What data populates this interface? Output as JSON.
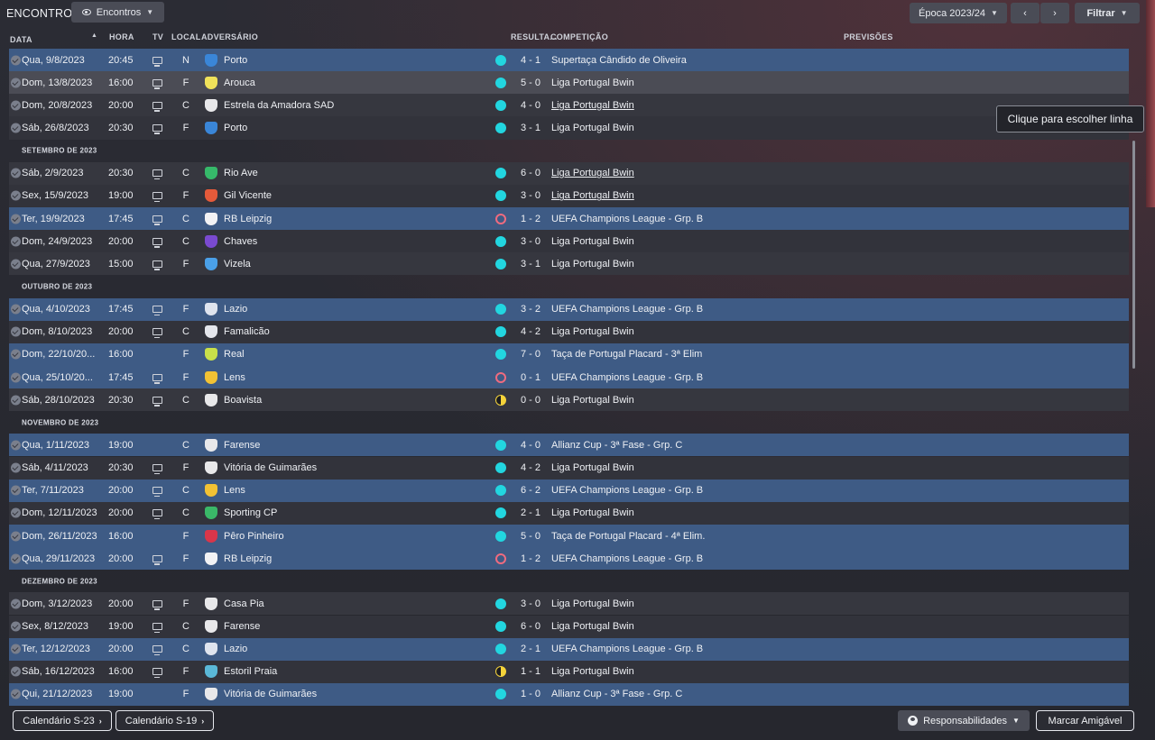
{
  "title": "ENCONTROS",
  "view_label": "Encontros",
  "season_label": "Época 2023/24",
  "filter_label": "Filtrar",
  "tooltip": "Clique para escolher linha",
  "headers": {
    "date": "DATA",
    "time": "HORA",
    "tv": "TV",
    "venue": "LOCAL",
    "opponent": "ADVERSÁRIO",
    "result": "RESULTA...",
    "competition": "COMPETIÇÃO",
    "predictions": "PREVISÕES"
  },
  "colors": {
    "win": "#22d6e0",
    "loss": "#ef6b7f",
    "draw": "#f5d33a",
    "highlight_row": "#3e5b85"
  },
  "rows": [
    {
      "kind": "match",
      "date": "Qua, 9/8/2023",
      "time": "20:45",
      "tv": true,
      "venue": "N",
      "opponent": "Porto",
      "crest": "#3a86d8",
      "crest_text": "",
      "res": "win",
      "score": "4 - 1",
      "comp": "Supertaça Cândido de Oliveira",
      "u": false,
      "style": "hl"
    },
    {
      "kind": "match",
      "date": "Dom, 13/8/2023",
      "time": "16:00",
      "tv": true,
      "venue": "F",
      "opponent": "Arouca",
      "crest": "#f0e25a",
      "crest_text": "",
      "res": "win",
      "score": "5 - 0",
      "comp": "Liga Portugal Bwin",
      "u": false,
      "style": "sel"
    },
    {
      "kind": "match",
      "date": "Dom, 20/8/2023",
      "time": "20:00",
      "tv": true,
      "venue": "C",
      "opponent": "Estrela da Amadora SAD",
      "crest": "#e8e8ea",
      "crest_text": "",
      "res": "win",
      "score": "4 - 0",
      "comp": "Liga Portugal Bwin",
      "u": true,
      "style": ""
    },
    {
      "kind": "match",
      "date": "Sáb, 26/8/2023",
      "time": "20:30",
      "tv": true,
      "venue": "F",
      "opponent": "Porto",
      "crest": "#3a86d8",
      "crest_text": "",
      "res": "win",
      "score": "3 - 1",
      "comp": "Liga Portugal Bwin",
      "u": false,
      "style": "alt"
    },
    {
      "kind": "sep",
      "label": "SETEMBRO DE 2023"
    },
    {
      "kind": "match",
      "date": "Sáb, 2/9/2023",
      "time": "20:30",
      "tv": true,
      "venue": "C",
      "opponent": "Rio Ave",
      "crest": "#36b96a",
      "crest_text": "",
      "res": "win",
      "score": "6 - 0",
      "comp": "Liga Portugal Bwin",
      "u": true,
      "style": ""
    },
    {
      "kind": "match",
      "date": "Sex, 15/9/2023",
      "time": "19:00",
      "tv": true,
      "venue": "F",
      "opponent": "Gil Vicente",
      "crest": "#e55a3a",
      "crest_text": "",
      "res": "win",
      "score": "3 - 0",
      "comp": "Liga Portugal Bwin",
      "u": true,
      "style": "alt"
    },
    {
      "kind": "match",
      "date": "Ter, 19/9/2023",
      "time": "17:45",
      "tv": true,
      "venue": "C",
      "opponent": "RB Leipzig",
      "crest": "#f2f2f4",
      "crest_text": "",
      "res": "loss",
      "score": "1 - 2",
      "comp": "UEFA Champions League - Grp. B",
      "u": false,
      "style": "hl"
    },
    {
      "kind": "match",
      "date": "Dom, 24/9/2023",
      "time": "20:00",
      "tv": true,
      "venue": "C",
      "opponent": "Chaves",
      "crest": "#7a4ad0",
      "crest_text": "",
      "res": "win",
      "score": "3 - 0",
      "comp": "Liga Portugal Bwin",
      "u": false,
      "style": "alt"
    },
    {
      "kind": "match",
      "date": "Qua, 27/9/2023",
      "time": "15:00",
      "tv": true,
      "venue": "F",
      "opponent": "Vizela",
      "crest": "#4aa0e8",
      "crest_text": "",
      "res": "win",
      "score": "3 - 1",
      "comp": "Liga Portugal Bwin",
      "u": false,
      "style": ""
    },
    {
      "kind": "sep",
      "label": "OUTUBRO DE 2023"
    },
    {
      "kind": "match",
      "date": "Qua, 4/10/2023",
      "time": "17:45",
      "tv": true,
      "venue": "F",
      "opponent": "Lazio",
      "crest": "#dfe4ee",
      "crest_text": "",
      "res": "win",
      "score": "3 - 2",
      "comp": "UEFA Champions League - Grp. B",
      "u": false,
      "style": "hl"
    },
    {
      "kind": "match",
      "date": "Dom, 8/10/2023",
      "time": "20:00",
      "tv": true,
      "venue": "C",
      "opponent": "Famalicão",
      "crest": "#e4e6ec",
      "crest_text": "",
      "res": "win",
      "score": "4 - 2",
      "comp": "Liga Portugal Bwin",
      "u": false,
      "style": "alt"
    },
    {
      "kind": "match",
      "date": "Dom, 22/10/20...",
      "time": "16:00",
      "tv": false,
      "venue": "F",
      "opponent": "Real",
      "crest": "#c8e04a",
      "crest_text": "",
      "res": "win",
      "score": "7 - 0",
      "comp": "Taça de Portugal Placard - 3ª Elim",
      "u": false,
      "style": "hl"
    },
    {
      "kind": "match",
      "date": "Qua, 25/10/20...",
      "time": "17:45",
      "tv": true,
      "venue": "F",
      "opponent": "Lens",
      "crest": "#f2c234",
      "crest_text": "",
      "res": "loss",
      "score": "0 - 1",
      "comp": "UEFA Champions League - Grp. B",
      "u": false,
      "style": "hl"
    },
    {
      "kind": "match",
      "date": "Sáb, 28/10/2023",
      "time": "20:30",
      "tv": true,
      "venue": "C",
      "opponent": "Boavista",
      "crest": "#e8e8ea",
      "crest_text": "",
      "res": "draw",
      "score": "0 - 0",
      "comp": "Liga Portugal Bwin",
      "u": false,
      "style": ""
    },
    {
      "kind": "sep",
      "label": "NOVEMBRO DE 2023"
    },
    {
      "kind": "match",
      "date": "Qua, 1/11/2023",
      "time": "19:00",
      "tv": false,
      "venue": "C",
      "opponent": "Farense",
      "crest": "#e8e8ea",
      "crest_text": "",
      "res": "win",
      "score": "4 - 0",
      "comp": "Allianz Cup - 3ª Fase - Grp. C",
      "u": false,
      "style": "hl"
    },
    {
      "kind": "match",
      "date": "Sáb, 4/11/2023",
      "time": "20:30",
      "tv": true,
      "venue": "F",
      "opponent": "Vitória de Guimarães",
      "crest": "#e8e8ea",
      "crest_text": "",
      "res": "win",
      "score": "4 - 2",
      "comp": "Liga Portugal Bwin",
      "u": false,
      "style": "alt"
    },
    {
      "kind": "match",
      "date": "Ter, 7/11/2023",
      "time": "20:00",
      "tv": true,
      "venue": "C",
      "opponent": "Lens",
      "crest": "#f2c234",
      "crest_text": "",
      "res": "win",
      "score": "6 - 2",
      "comp": "UEFA Champions League - Grp. B",
      "u": false,
      "style": "hl"
    },
    {
      "kind": "match",
      "date": "Dom, 12/11/2023",
      "time": "20:00",
      "tv": true,
      "venue": "C",
      "opponent": "Sporting CP",
      "crest": "#3ab868",
      "crest_text": "",
      "res": "win",
      "score": "2 - 1",
      "comp": "Liga Portugal Bwin",
      "u": false,
      "style": "alt"
    },
    {
      "kind": "match",
      "date": "Dom, 26/11/2023",
      "time": "16:00",
      "tv": false,
      "venue": "F",
      "opponent": "Pêro Pinheiro",
      "crest": "#d8364a",
      "crest_text": "",
      "res": "win",
      "score": "5 - 0",
      "comp": "Taça de Portugal Placard - 4ª Elim.",
      "u": false,
      "style": "hl"
    },
    {
      "kind": "match",
      "date": "Qua, 29/11/2023",
      "time": "20:00",
      "tv": true,
      "venue": "F",
      "opponent": "RB Leipzig",
      "crest": "#f2f2f4",
      "crest_text": "",
      "res": "loss",
      "score": "1 - 2",
      "comp": "UEFA Champions League - Grp. B",
      "u": false,
      "style": "hl"
    },
    {
      "kind": "sep",
      "label": "DEZEMBRO DE 2023"
    },
    {
      "kind": "match",
      "date": "Dom, 3/12/2023",
      "time": "20:00",
      "tv": true,
      "venue": "F",
      "opponent": "Casa Pia",
      "crest": "#e8e8ea",
      "crest_text": "",
      "res": "win",
      "score": "3 - 0",
      "comp": "Liga Portugal Bwin",
      "u": false,
      "style": ""
    },
    {
      "kind": "match",
      "date": "Sex, 8/12/2023",
      "time": "19:00",
      "tv": true,
      "venue": "C",
      "opponent": "Farense",
      "crest": "#e8e8ea",
      "crest_text": "",
      "res": "win",
      "score": "6 - 0",
      "comp": "Liga Portugal Bwin",
      "u": false,
      "style": "alt"
    },
    {
      "kind": "match",
      "date": "Ter, 12/12/2023",
      "time": "20:00",
      "tv": true,
      "venue": "C",
      "opponent": "Lazio",
      "crest": "#dfe4ee",
      "crest_text": "",
      "res": "win",
      "score": "2 - 1",
      "comp": "UEFA Champions League - Grp. B",
      "u": false,
      "style": "hl"
    },
    {
      "kind": "match",
      "date": "Sáb, 16/12/2023",
      "time": "16:00",
      "tv": true,
      "venue": "F",
      "opponent": "Estoril Praia",
      "crest": "#5ab8d8",
      "crest_text": "",
      "res": "draw",
      "score": "1 - 1",
      "comp": "Liga Portugal Bwin",
      "u": false,
      "style": "alt"
    },
    {
      "kind": "match",
      "date": "Qui, 21/12/2023",
      "time": "19:00",
      "tv": false,
      "venue": "F",
      "opponent": "Vitória de Guimarães",
      "crest": "#e8e8ea",
      "crest_text": "",
      "res": "win",
      "score": "1 - 0",
      "comp": "Allianz Cup - 3ª Fase - Grp. C",
      "u": false,
      "style": "hl"
    }
  ],
  "bottom": {
    "cal_u23": "Calendário S-23",
    "cal_u19": "Calendário S-19",
    "responsibilities": "Responsabilidades",
    "friendly": "Marcar Amigável"
  }
}
